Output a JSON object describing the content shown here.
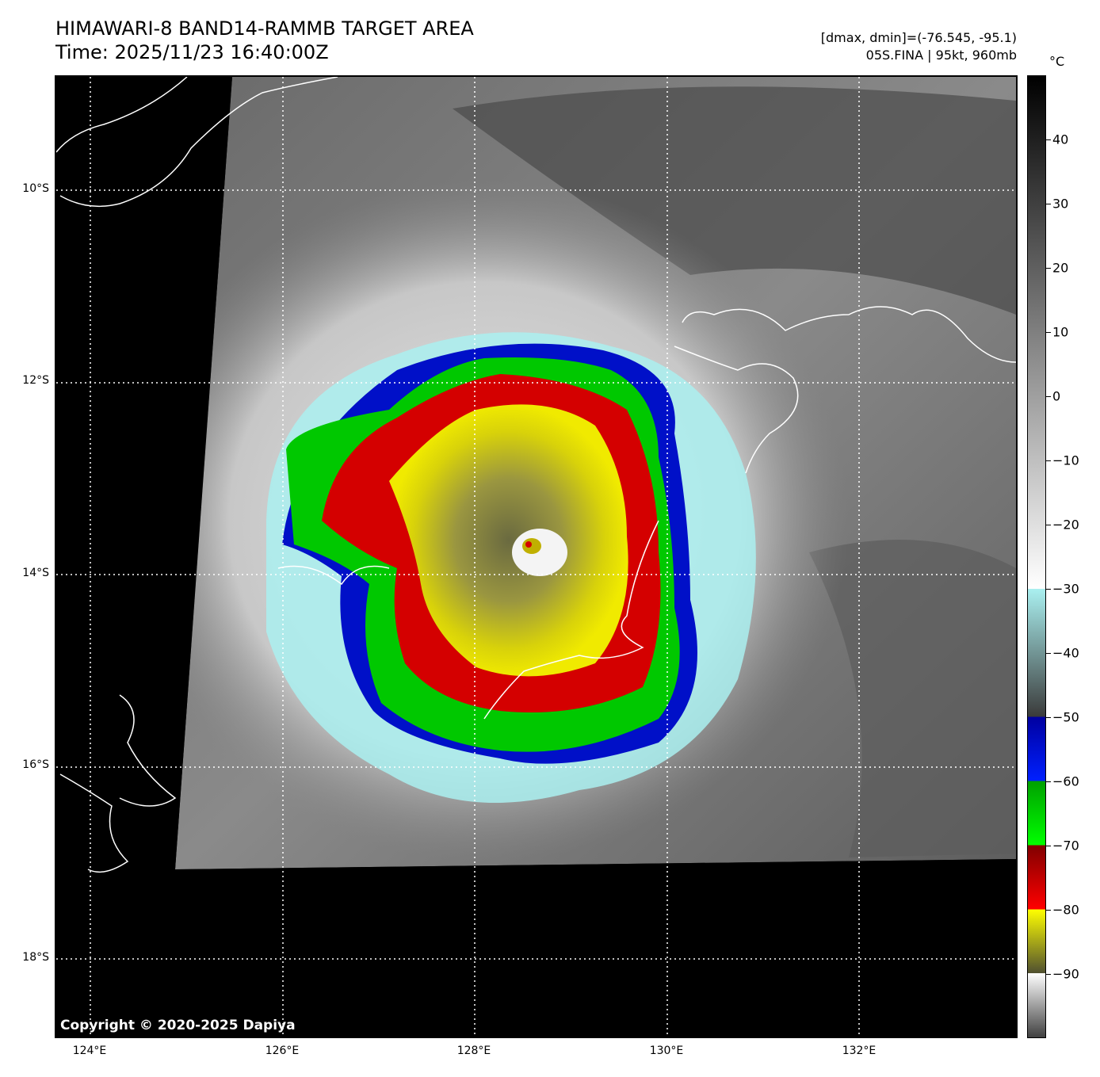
{
  "header": {
    "title_line1": "HIMAWARI-8 BAND14-RAMMB TARGET AREA",
    "title_line2": "Time: 2025/11/23 16:40:00Z",
    "info_line1": "[dmax, dmin]=(-76.545, -95.1)",
    "info_line2": "05S.FINA | 95kt, 960mb"
  },
  "map": {
    "lat_labels": [
      "10°S",
      "12°S",
      "14°S",
      "16°S",
      "18°S"
    ],
    "lon_labels": [
      "124°E",
      "126°E",
      "128°E",
      "130°E",
      "132°E"
    ],
    "lat_values": [
      -10,
      -12,
      -14,
      -16,
      -18
    ],
    "lon_values": [
      124,
      126,
      128,
      130,
      132
    ],
    "copyright": "Copyright © 2020-2025 Dapiya",
    "storm_id": "05S.FINA",
    "colors": {
      "eye_white": "#ffffff",
      "yellow_band": "#e6e000",
      "red_band": "#d40000",
      "green_band": "#00c800",
      "blue_band": "#0010c8",
      "cyan_edge": "#aaf0f0",
      "coastline": "#ffffff",
      "no_data": "#000000"
    }
  },
  "colorbar": {
    "unit": "°C",
    "tick_labels": [
      "40",
      "30",
      "20",
      "10",
      "0",
      "−10",
      "−20",
      "−30",
      "−40",
      "−50",
      "−60",
      "−70",
      "−80",
      "−90"
    ],
    "tick_values": [
      40,
      30,
      20,
      10,
      0,
      -10,
      -20,
      -30,
      -40,
      -50,
      -60,
      -70,
      -80,
      -90
    ],
    "range": [
      -100,
      50
    ]
  }
}
